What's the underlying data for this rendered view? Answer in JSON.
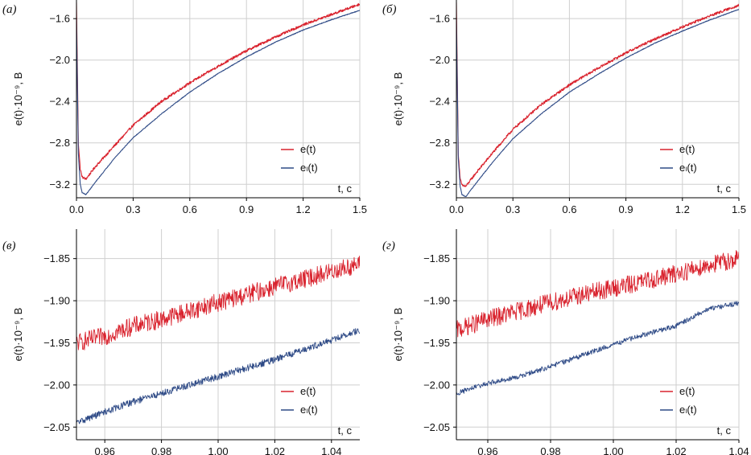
{
  "colors": {
    "e": "#d9232e",
    "el": "#2e4a86",
    "grid": "#cfcfcf",
    "axis": "#000000"
  },
  "chart_data": [
    {
      "type": "line",
      "panel_label": "(а)",
      "ylabel": "e(t)·10⁻⁹, В",
      "xunit": "t, с",
      "xlim": [
        0,
        1.5
      ],
      "ylim": [
        -3.33,
        -1.42
      ],
      "xticks": [
        0,
        0.3,
        0.6,
        0.9,
        1.2,
        1.5
      ],
      "xtick_labels": [
        "0.0",
        "0.3",
        "0.6",
        "0.9",
        "1.2",
        "1.5"
      ],
      "yticks": [
        -3.2,
        -2.8,
        -2.4,
        -2.0,
        -1.6
      ],
      "ytick_labels": [
        "−3.2",
        "−2.8",
        "−2.4",
        "−2.0",
        "−1.6"
      ],
      "legend": [
        "e(t)",
        "eₗ(t)"
      ],
      "series": [
        {
          "name": "e(t)",
          "color_key": "e",
          "noise": 0.012,
          "x": [
            0.0,
            0.01,
            0.02,
            0.03,
            0.05,
            0.1,
            0.2,
            0.3,
            0.45,
            0.6,
            0.75,
            0.9,
            1.05,
            1.2,
            1.35,
            1.5
          ],
          "y": [
            -1.45,
            -2.8,
            -3.05,
            -3.13,
            -3.15,
            -3.03,
            -2.83,
            -2.63,
            -2.4,
            -2.22,
            -2.06,
            -1.91,
            -1.78,
            -1.66,
            -1.56,
            -1.46
          ]
        },
        {
          "name": "eₗ(t)",
          "color_key": "el",
          "noise": 0.003,
          "x": [
            0.0,
            0.01,
            0.02,
            0.03,
            0.05,
            0.1,
            0.2,
            0.3,
            0.45,
            0.6,
            0.75,
            0.9,
            1.05,
            1.2,
            1.35,
            1.5
          ],
          "y": [
            -1.6,
            -2.9,
            -3.2,
            -3.28,
            -3.3,
            -3.18,
            -2.95,
            -2.75,
            -2.52,
            -2.31,
            -2.13,
            -1.97,
            -1.83,
            -1.71,
            -1.61,
            -1.52
          ]
        }
      ]
    },
    {
      "type": "line",
      "panel_label": "(б)",
      "ylabel": "e(t)·10⁻⁹, В",
      "xunit": "t, с",
      "xlim": [
        0,
        1.5
      ],
      "ylim": [
        -3.33,
        -1.42
      ],
      "xticks": [
        0,
        0.3,
        0.6,
        0.9,
        1.2,
        1.5
      ],
      "xtick_labels": [
        "0.0",
        "0.3",
        "0.6",
        "0.9",
        "1.2",
        "1.5"
      ],
      "yticks": [
        -3.2,
        -2.8,
        -2.4,
        -2.0,
        -1.6
      ],
      "ytick_labels": [
        "−3.2",
        "−2.8",
        "−2.4",
        "−2.0",
        "−1.6"
      ],
      "legend": [
        "e(t)",
        "eₗ(t)"
      ],
      "series": [
        {
          "name": "e(t)",
          "color_key": "e",
          "noise": 0.012,
          "x": [
            0.0,
            0.01,
            0.02,
            0.03,
            0.05,
            0.1,
            0.2,
            0.3,
            0.45,
            0.6,
            0.75,
            0.9,
            1.05,
            1.2,
            1.35,
            1.5
          ],
          "y": [
            -1.45,
            -2.9,
            -3.15,
            -3.21,
            -3.22,
            -3.1,
            -2.88,
            -2.67,
            -2.43,
            -2.24,
            -2.08,
            -1.93,
            -1.8,
            -1.68,
            -1.57,
            -1.47
          ]
        },
        {
          "name": "eₗ(t)",
          "color_key": "el",
          "noise": 0.003,
          "x": [
            0.0,
            0.01,
            0.02,
            0.03,
            0.05,
            0.1,
            0.2,
            0.3,
            0.45,
            0.6,
            0.75,
            0.9,
            1.05,
            1.2,
            1.35,
            1.5
          ],
          "y": [
            -1.6,
            -2.95,
            -3.22,
            -3.3,
            -3.32,
            -3.2,
            -2.97,
            -2.76,
            -2.52,
            -2.31,
            -2.14,
            -1.98,
            -1.84,
            -1.72,
            -1.61,
            -1.51
          ]
        }
      ]
    },
    {
      "type": "line",
      "panel_label": "(в)",
      "ylabel": "e(t)·10⁻⁹, В",
      "xunit": "t, с",
      "xlim": [
        0.95,
        1.05
      ],
      "ylim": [
        -2.065,
        -1.815
      ],
      "xticks": [
        0.96,
        0.98,
        1.0,
        1.02,
        1.04
      ],
      "xtick_labels": [
        "0.96",
        "0.98",
        "1.00",
        "1.02",
        "1.04"
      ],
      "yticks": [
        -2.05,
        -2.0,
        -1.95,
        -1.9,
        -1.85
      ],
      "ytick_labels": [
        "−2.05",
        "−2.00",
        "−1.95",
        "−1.90",
        "−1.85"
      ],
      "legend": [
        "e(t)",
        "eₗ(t)"
      ],
      "series": [
        {
          "name": "e(t)",
          "color_key": "e",
          "noise": 0.011,
          "x": [
            0.95,
            0.96,
            0.97,
            0.98,
            0.99,
            1.0,
            1.01,
            1.02,
            1.03,
            1.04,
            1.05
          ],
          "y": [
            -1.95,
            -1.942,
            -1.93,
            -1.922,
            -1.912,
            -1.902,
            -1.893,
            -1.883,
            -1.875,
            -1.865,
            -1.857
          ]
        },
        {
          "name": "eₗ(t)",
          "color_key": "el",
          "noise": 0.004,
          "x": [
            0.95,
            0.96,
            0.97,
            0.98,
            0.99,
            1.0,
            1.01,
            1.02,
            1.03,
            1.04,
            1.05
          ],
          "y": [
            -2.045,
            -2.032,
            -2.02,
            -2.01,
            -2.0,
            -1.99,
            -1.98,
            -1.97,
            -1.958,
            -1.947,
            -1.935
          ]
        }
      ]
    },
    {
      "type": "line",
      "panel_label": "(г)",
      "ylabel": "e(t)·10⁻⁹, В",
      "xunit": "t, с",
      "xlim": [
        0.95,
        1.04
      ],
      "ylim": [
        -2.065,
        -1.815
      ],
      "xticks": [
        0.96,
        0.98,
        1.0,
        1.02,
        1.04
      ],
      "xtick_labels": [
        "0.96",
        "0.98",
        "1.00",
        "1.02",
        "1.04"
      ],
      "yticks": [
        -2.05,
        -2.0,
        -1.95,
        -1.9,
        -1.85
      ],
      "ytick_labels": [
        "−2.05",
        "−2.00",
        "−1.95",
        "−1.90",
        "−1.85"
      ],
      "legend": [
        "e(t)",
        "eₗ(t)"
      ],
      "series": [
        {
          "name": "e(t)",
          "color_key": "e",
          "noise": 0.011,
          "x": [
            0.95,
            0.96,
            0.97,
            0.98,
            0.99,
            1.0,
            1.01,
            1.02,
            1.03,
            1.04
          ],
          "y": [
            -1.935,
            -1.922,
            -1.912,
            -1.902,
            -1.893,
            -1.885,
            -1.877,
            -1.868,
            -1.858,
            -1.85
          ]
        },
        {
          "name": "eₗ(t)",
          "color_key": "el",
          "noise": 0.003,
          "x": [
            0.95,
            0.96,
            0.97,
            0.98,
            0.99,
            1.0,
            1.01,
            1.02,
            1.03,
            1.04
          ],
          "y": [
            -2.01,
            -1.998,
            -1.99,
            -1.978,
            -1.965,
            -1.952,
            -1.94,
            -1.93,
            -1.91,
            -1.903
          ]
        }
      ]
    }
  ]
}
